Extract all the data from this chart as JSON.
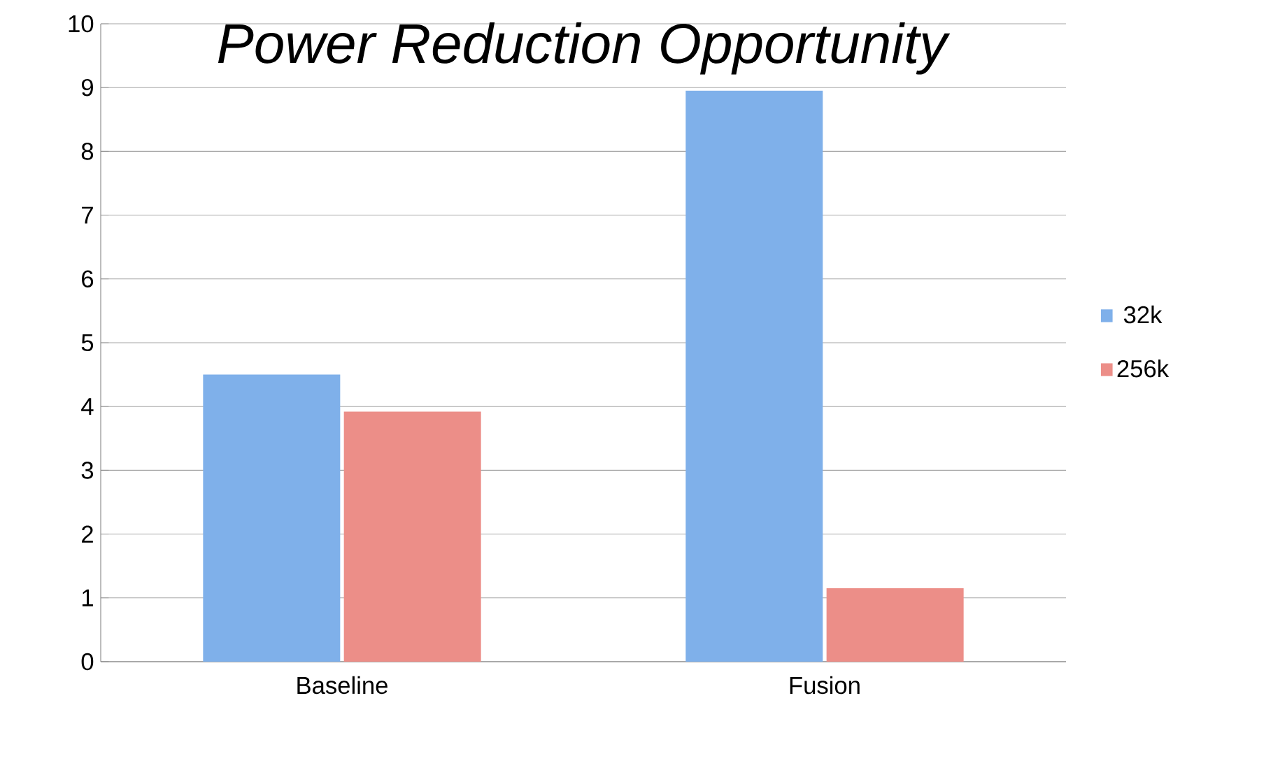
{
  "chart_data": {
    "type": "bar",
    "title": "*Power Reduction Opportunity*",
    "categories": [
      "Baseline",
      "Fusion"
    ],
    "series": [
      {
        "name": "32k",
        "color": "#7fb0ea",
        "values": [
          4.5,
          8.95
        ]
      },
      {
        "name": "256k",
        "color": "#ec8e88",
        "values": [
          3.92,
          1.15
        ]
      }
    ],
    "ylim": [
      0,
      10
    ],
    "yticks": [
      0,
      1,
      2,
      3,
      4,
      5,
      6,
      7,
      8,
      9,
      10
    ],
    "grid": "y",
    "legend": "right"
  }
}
